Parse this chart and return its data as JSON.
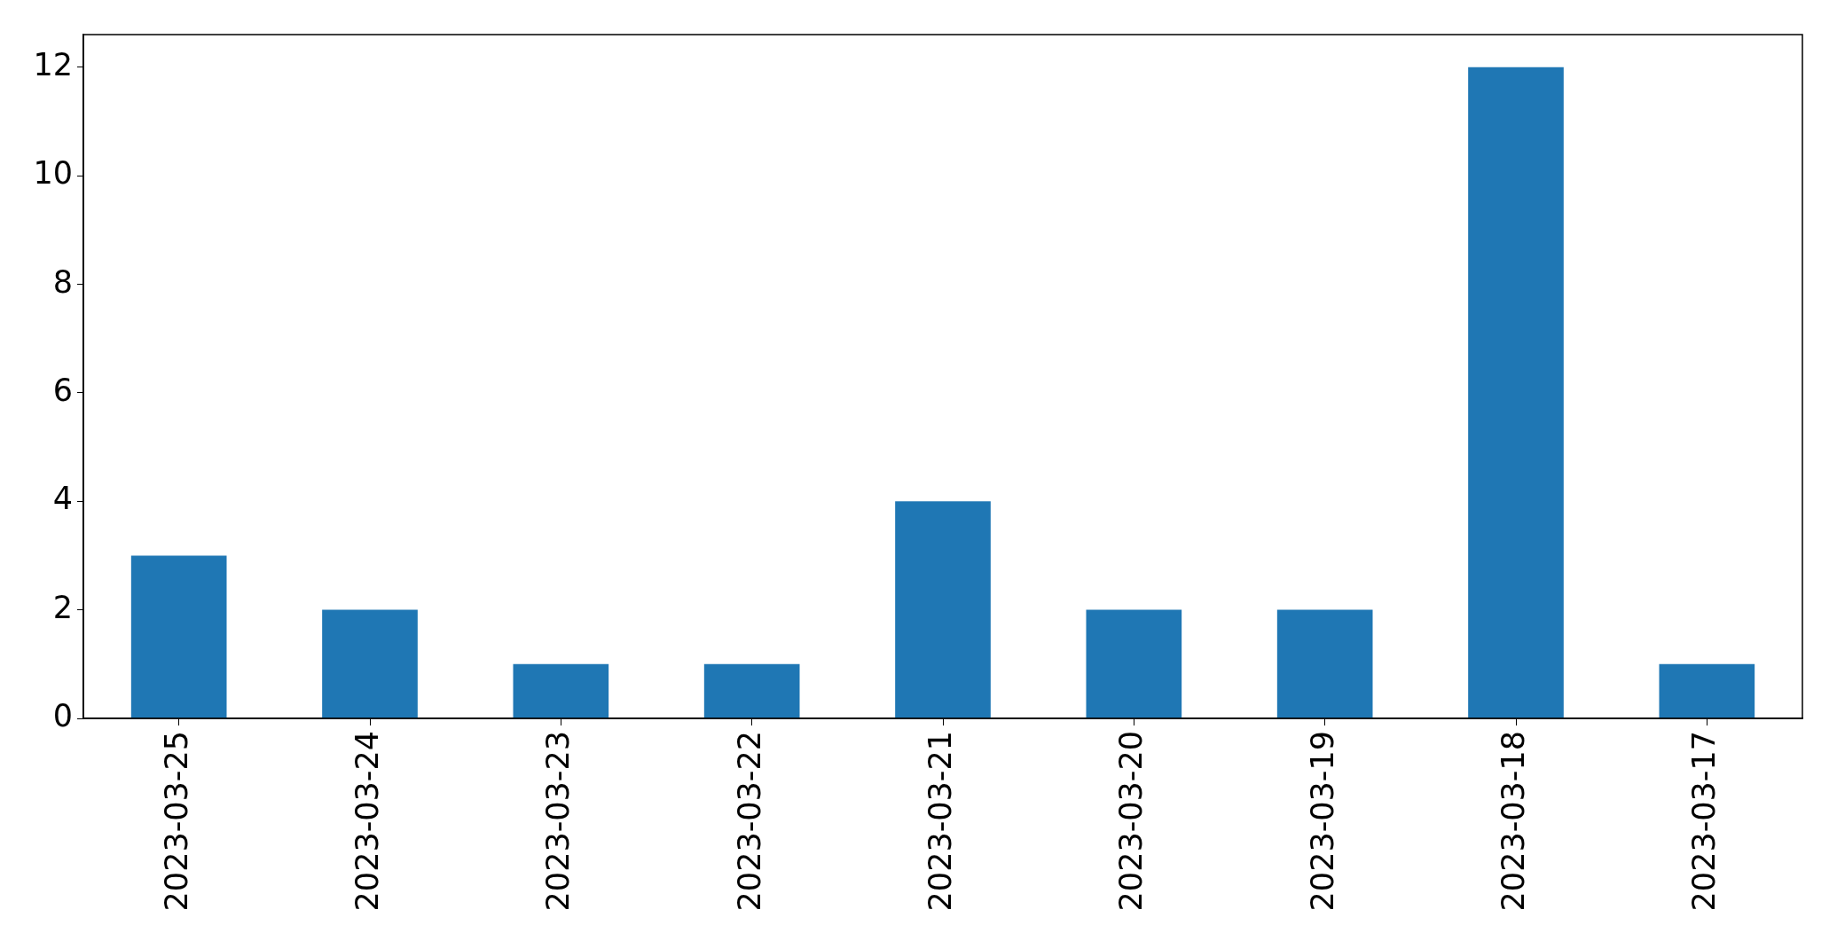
{
  "chart_data": {
    "type": "bar",
    "categories": [
      "2023-03-25",
      "2023-03-24",
      "2023-03-23",
      "2023-03-22",
      "2023-03-21",
      "2023-03-20",
      "2023-03-19",
      "2023-03-18",
      "2023-03-17"
    ],
    "values": [
      3,
      2,
      1,
      1,
      4,
      2,
      2,
      12,
      1
    ],
    "color": "#1f77b4",
    "ylim": [
      0,
      12.6
    ],
    "yticks": [
      0,
      2,
      4,
      6,
      8,
      10,
      12
    ]
  }
}
